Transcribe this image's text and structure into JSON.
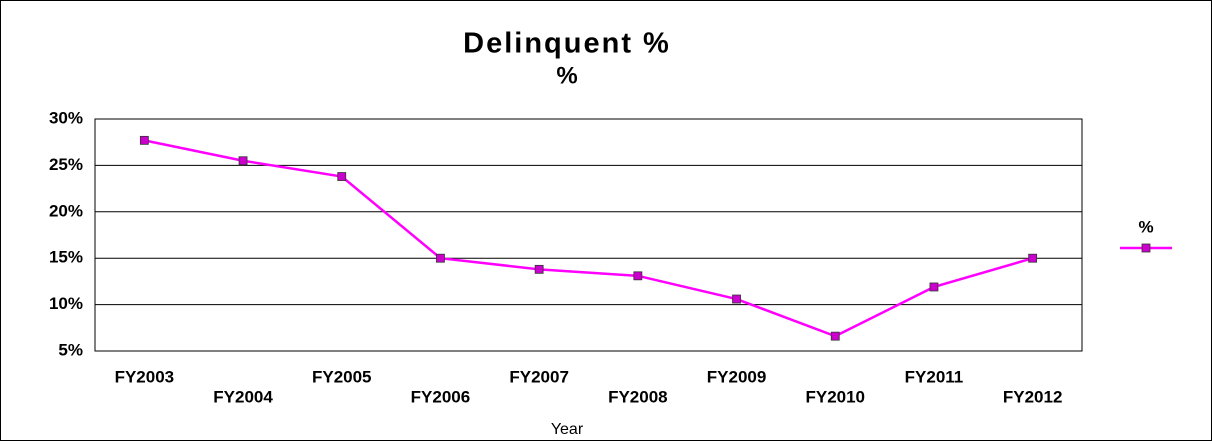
{
  "chart_data": {
    "type": "line",
    "title": "Delinquent %",
    "subtitle": "%",
    "x_label": "Year",
    "categories": [
      "FY2003",
      "FY2004",
      "FY2005",
      "FY2006",
      "FY2007",
      "FY2008",
      "FY2009",
      "FY2010",
      "FY2011",
      "FY2012"
    ],
    "series": [
      {
        "name": "%",
        "color": "#ff00ff",
        "marker_color": "#cc00cc",
        "values": [
          27.7,
          25.5,
          23.8,
          15.0,
          13.8,
          13.1,
          10.6,
          6.6,
          11.9,
          15.0
        ]
      }
    ],
    "ylim": [
      5,
      30
    ],
    "yticks": [
      {
        "value": 5,
        "label": "5%"
      },
      {
        "value": 10,
        "label": "10%"
      },
      {
        "value": 15,
        "label": "15%"
      },
      {
        "value": 20,
        "label": "20%"
      },
      {
        "value": 25,
        "label": "25%"
      },
      {
        "value": 30,
        "label": "30%"
      }
    ],
    "grid": true,
    "legend": "right"
  }
}
